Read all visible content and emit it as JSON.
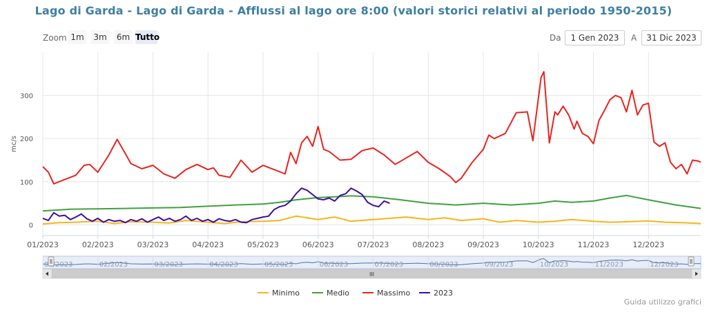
{
  "title": "Lago di Garda - Lago di Garda - Afflussi al lago ore 8:00 (valori storici relativi al periodo 1950-2015)",
  "toolbar": {
    "zoom_label": "Zoom",
    "buttons": [
      "1m",
      "3m",
      "6m",
      "Tutto"
    ],
    "active_button": "Tutto",
    "from_label": "Da",
    "from_value": "1 Gen 2023",
    "to_label": "A",
    "to_value": "31 Dic 2023"
  },
  "credits": "Guida utilizzo grafici",
  "navigator": {
    "scroll_handle": "III"
  },
  "colors": {
    "minimo": "#f7b419",
    "medio": "#3fa03c",
    "massimo": "#e8231d",
    "y2023": "#3a0ca3",
    "grid": "#e6e6e6",
    "navigator_line": "#4572a7"
  },
  "chart_data": {
    "type": "line",
    "title": "Lago di Garda - Lago di Garda - Afflussi al lago ore 8:00 (valori storici relativi al periodo 1950-2015)",
    "xlabel": "",
    "ylabel": "mc/s",
    "ylim": [
      -25,
      400
    ],
    "yticks": [
      0,
      100,
      200,
      300
    ],
    "xticks": [
      "01/2023",
      "02/2023",
      "03/2023",
      "04/2023",
      "05/2023",
      "06/2023",
      "07/2023",
      "08/2023",
      "09/2023",
      "10/2023",
      "11/2023",
      "12/2023"
    ],
    "x_unit": "month",
    "xlim": [
      0,
      11.95
    ],
    "legend_position": "bottom",
    "grid": true,
    "series": [
      {
        "name": "Minimo",
        "key": "minimo",
        "x": [
          0,
          0.3,
          0.6,
          1,
          1.3,
          1.6,
          2,
          2.3,
          2.6,
          3,
          3.3,
          3.6,
          4,
          4.3,
          4.6,
          5,
          5.3,
          5.6,
          6,
          6.3,
          6.6,
          7,
          7.3,
          7.6,
          8,
          8.3,
          8.6,
          9,
          9.3,
          9.6,
          10,
          10.3,
          10.6,
          11,
          11.3,
          11.6,
          11.95
        ],
        "y": [
          2,
          5,
          6,
          8,
          3,
          7,
          6,
          4,
          10,
          6,
          3,
          7,
          8,
          10,
          20,
          12,
          18,
          8,
          12,
          15,
          18,
          12,
          16,
          10,
          14,
          6,
          10,
          6,
          8,
          12,
          8,
          6,
          7,
          9,
          6,
          5,
          3
        ]
      },
      {
        "name": "Medio",
        "key": "medio",
        "x": [
          0,
          0.5,
          1,
          1.5,
          2,
          2.5,
          3,
          3.5,
          4,
          4.3,
          4.6,
          5,
          5.3,
          5.6,
          6,
          6.5,
          7,
          7.5,
          8,
          8.5,
          9,
          9.3,
          9.6,
          10,
          10.3,
          10.6,
          11,
          11.5,
          11.95
        ],
        "y": [
          32,
          36,
          37,
          38,
          39,
          40,
          43,
          46,
          48,
          52,
          58,
          63,
          65,
          67,
          65,
          58,
          50,
          46,
          50,
          46,
          50,
          55,
          52,
          55,
          62,
          68,
          58,
          46,
          38
        ]
      },
      {
        "name": "Massimo",
        "key": "massimo",
        "x": [
          0,
          0.1,
          0.2,
          0.4,
          0.6,
          0.75,
          0.85,
          1,
          1.2,
          1.35,
          1.5,
          1.6,
          1.8,
          2,
          2.2,
          2.4,
          2.6,
          2.8,
          3,
          3.1,
          3.2,
          3.4,
          3.6,
          3.8,
          4,
          4.2,
          4.4,
          4.5,
          4.6,
          4.7,
          4.8,
          4.9,
          5,
          5.1,
          5.2,
          5.4,
          5.6,
          5.8,
          6,
          6.2,
          6.4,
          6.6,
          6.8,
          7,
          7.2,
          7.4,
          7.5,
          7.6,
          7.8,
          8,
          8.1,
          8.2,
          8.4,
          8.6,
          8.8,
          8.9,
          9.05,
          9.1,
          9.2,
          9.3,
          9.35,
          9.45,
          9.55,
          9.65,
          9.7,
          9.8,
          9.9,
          10,
          10.1,
          10.2,
          10.3,
          10.4,
          10.5,
          10.6,
          10.7,
          10.8,
          10.9,
          11,
          11.1,
          11.2,
          11.3,
          11.4,
          11.5,
          11.6,
          11.7,
          11.8,
          11.9,
          11.95
        ],
        "y": [
          135,
          122,
          95,
          105,
          115,
          138,
          140,
          122,
          162,
          198,
          165,
          142,
          130,
          138,
          118,
          108,
          128,
          140,
          128,
          132,
          115,
          110,
          150,
          122,
          138,
          128,
          118,
          168,
          142,
          190,
          205,
          182,
          228,
          175,
          170,
          150,
          152,
          172,
          178,
          162,
          140,
          155,
          170,
          145,
          130,
          112,
          98,
          108,
          145,
          175,
          208,
          200,
          212,
          260,
          262,
          195,
          342,
          355,
          190,
          262,
          255,
          275,
          255,
          222,
          240,
          212,
          205,
          188,
          242,
          265,
          290,
          300,
          295,
          262,
          312,
          255,
          278,
          282,
          192,
          182,
          190,
          145,
          130,
          140,
          118,
          150,
          148,
          145
        ]
      },
      {
        "name": "2023",
        "key": "y2023",
        "x": [
          0,
          0.1,
          0.2,
          0.3,
          0.4,
          0.5,
          0.6,
          0.7,
          0.8,
          0.9,
          1,
          1.1,
          1.2,
          1.3,
          1.4,
          1.5,
          1.6,
          1.7,
          1.8,
          1.9,
          2,
          2.1,
          2.2,
          2.3,
          2.4,
          2.5,
          2.6,
          2.7,
          2.8,
          2.9,
          3,
          3.1,
          3.2,
          3.3,
          3.4,
          3.5,
          3.6,
          3.7,
          3.8,
          3.9,
          4,
          4.1,
          4.2,
          4.3,
          4.4,
          4.5,
          4.6,
          4.7,
          4.8,
          4.9,
          5,
          5.1,
          5.2,
          5.3,
          5.4,
          5.5,
          5.6,
          5.7,
          5.8,
          5.9,
          6,
          6.1,
          6.2,
          6.3
        ],
        "y": [
          15,
          10,
          28,
          20,
          22,
          12,
          18,
          25,
          14,
          8,
          15,
          6,
          12,
          8,
          10,
          5,
          12,
          8,
          14,
          6,
          12,
          18,
          10,
          15,
          8,
          12,
          20,
          10,
          15,
          8,
          12,
          6,
          14,
          10,
          8,
          12,
          6,
          5,
          12,
          15,
          18,
          20,
          35,
          42,
          45,
          55,
          72,
          85,
          80,
          70,
          60,
          58,
          62,
          55,
          68,
          72,
          85,
          78,
          70,
          52,
          45,
          42,
          55,
          50
        ]
      }
    ]
  }
}
